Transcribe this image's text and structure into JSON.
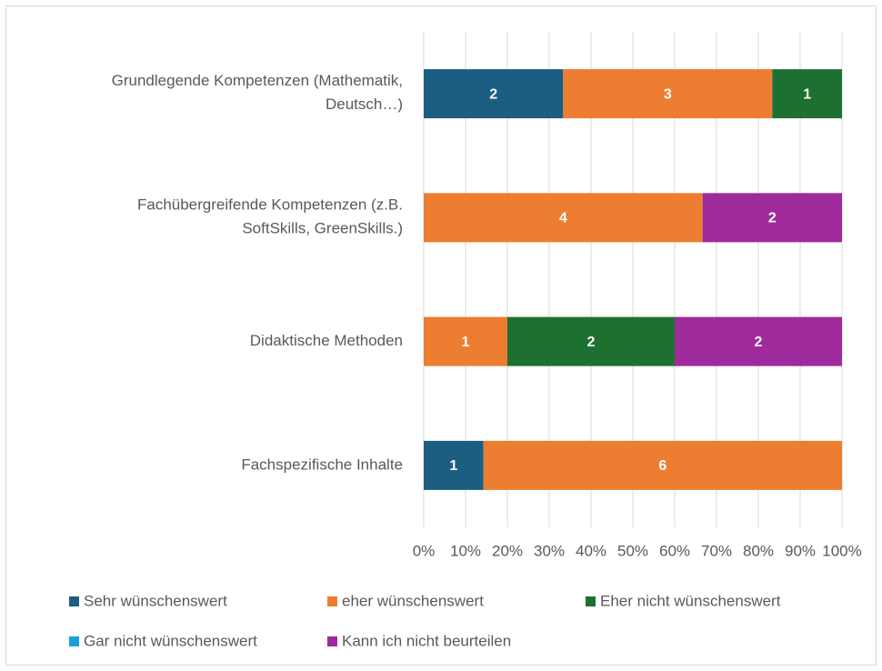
{
  "chart_data": {
    "type": "bar",
    "orientation": "horizontal",
    "stacking": "percent",
    "categories": [
      "Grundlegende Kompetenzen (Mathematik, Deutsch…)",
      "Fachübergreifende Kompetenzen (z.B. SoftSkills, GreenSkills.)",
      "Didaktische Methoden",
      "Fachspezifische Inhalte"
    ],
    "series": [
      {
        "name": "Sehr wünschenswert",
        "color": "#1b5e82",
        "values": [
          2,
          null,
          null,
          1
        ]
      },
      {
        "name": "eher wünschenswert",
        "color": "#ed7d31",
        "values": [
          3,
          4,
          1,
          6
        ]
      },
      {
        "name": "Eher nicht wünschenswert",
        "color": "#1e7030",
        "values": [
          1,
          null,
          2,
          null
        ]
      },
      {
        "name": "Gar nicht wünschenswert",
        "color": "#1aa0d8",
        "values": [
          null,
          null,
          null,
          null
        ]
      },
      {
        "name": "Kann ich nicht beurteilen",
        "color": "#9e2a9c",
        "values": [
          null,
          2,
          2,
          null
        ]
      }
    ],
    "xlim": [
      0,
      100
    ],
    "xticks": [
      {
        "value": 0,
        "label": "0%"
      },
      {
        "value": 10,
        "label": "10%"
      },
      {
        "value": 20,
        "label": "20%"
      },
      {
        "value": 30,
        "label": "30%"
      },
      {
        "value": 40,
        "label": "40%"
      },
      {
        "value": 50,
        "label": "50%"
      },
      {
        "value": 60,
        "label": "60%"
      },
      {
        "value": 70,
        "label": "70%"
      },
      {
        "value": 80,
        "label": "80%"
      },
      {
        "value": 90,
        "label": "90%"
      },
      {
        "value": 100,
        "label": "100%"
      }
    ],
    "grid": true,
    "legend": "bottom"
  }
}
